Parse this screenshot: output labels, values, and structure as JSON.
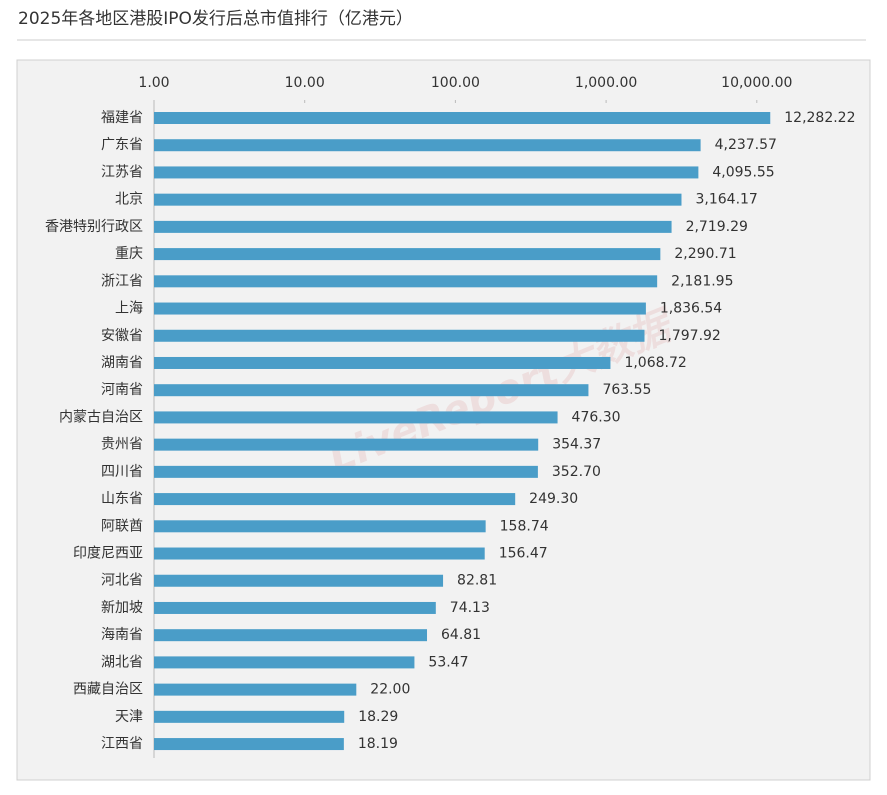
{
  "chart_data": {
    "type": "bar",
    "orientation": "horizontal",
    "title": "2025年各地区港股IPO发行后总市值排行（亿港元）",
    "watermark": "LiveReport大数据",
    "categories": [
      "福建省",
      "广东省",
      "江苏省",
      "北京",
      "香港特别行政区",
      "重庆",
      "浙江省",
      "上海",
      "安徽省",
      "湖南省",
      "河南省",
      "内蒙古自治区",
      "贵州省",
      "四川省",
      "山东省",
      "阿联酋",
      "印度尼西亚",
      "河北省",
      "新加坡",
      "海南省",
      "湖北省",
      "西藏自治区",
      "天津",
      "江西省"
    ],
    "values": [
      12282.22,
      4237.57,
      4095.55,
      3164.17,
      2719.29,
      2290.71,
      2181.95,
      1836.54,
      1797.92,
      1068.72,
      763.55,
      476.3,
      354.37,
      352.7,
      249.3,
      158.74,
      156.47,
      82.81,
      74.13,
      64.81,
      53.47,
      22.0,
      18.29,
      18.19
    ],
    "value_labels": [
      "12,282.22",
      "4,237.57",
      "4,095.55",
      "3,164.17",
      "2,719.29",
      "2,290.71",
      "2,181.95",
      "1,836.54",
      "1,797.92",
      "1,068.72",
      "763.55",
      "476.30",
      "354.37",
      "352.70",
      "249.30",
      "158.74",
      "156.47",
      "82.81",
      "74.13",
      "64.81",
      "53.47",
      "22.00",
      "18.29",
      "18.19"
    ],
    "color": "#4a9dc8",
    "log_scale": true,
    "xlim": [
      1,
      20000
    ],
    "xticks": [
      {
        "value": 1,
        "label": "1.00"
      },
      {
        "value": 10,
        "label": "10.00"
      },
      {
        "value": 100,
        "label": "100.00"
      },
      {
        "value": 1000,
        "label": "1,000.00"
      },
      {
        "value": 10000,
        "label": "10,000.00"
      }
    ]
  }
}
